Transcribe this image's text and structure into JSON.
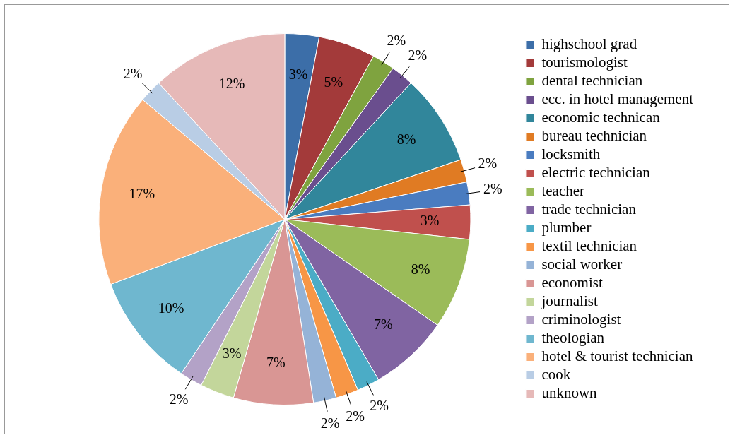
{
  "chart_data": {
    "type": "pie",
    "categories": [
      "highschool grad",
      "tourismologist",
      "dental technician",
      "ecc. in hotel management",
      "economic technican",
      "bureau technician",
      "locksmith",
      "electric technician",
      "teacher",
      "trade technician",
      "plumber",
      "textil technician",
      "social worker",
      "economist",
      "journalist",
      "criminologist",
      "theologian",
      "hotel & tourist technician",
      "cook",
      "unknown"
    ],
    "values": [
      3,
      5,
      2,
      2,
      8,
      2,
      2,
      3,
      8,
      7,
      2,
      2,
      2,
      7,
      3,
      2,
      10,
      17,
      2,
      12
    ],
    "value_labels": [
      "3%",
      "5%",
      "2%",
      "2%",
      "8%",
      "2%",
      "2%",
      "3%",
      "8%",
      "7%",
      "2%",
      "2%",
      "2%",
      "7%",
      "3%",
      "2%",
      "10%",
      "17%",
      "2%",
      "12%"
    ],
    "colors": [
      "#3c6ea8",
      "#a33a3a",
      "#7fa33f",
      "#6a4e8e",
      "#31869b",
      "#e07b23",
      "#4a7cc0",
      "#c0504d",
      "#9bbb59",
      "#8064a2",
      "#4bacc6",
      "#f79646",
      "#95b3d7",
      "#d99694",
      "#c3d69b",
      "#b3a2c7",
      "#6fb7cf",
      "#fab07a",
      "#b9cde5",
      "#e6b9b8"
    ],
    "legend": "right"
  }
}
